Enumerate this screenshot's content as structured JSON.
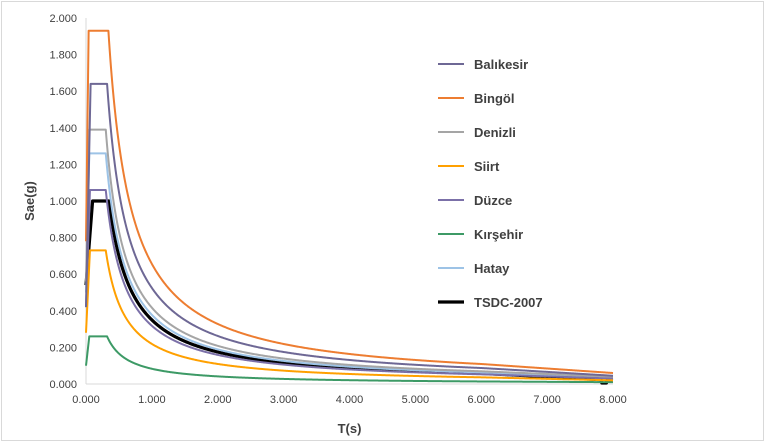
{
  "chart_data": {
    "type": "line",
    "title": "",
    "xlabel": "T(s)",
    "ylabel": "Sae(g)",
    "xlim": [
      0,
      8
    ],
    "ylim": [
      0,
      2
    ],
    "xticks": [
      0,
      1,
      2,
      3,
      4,
      5,
      6,
      7,
      8
    ],
    "yticks": [
      0,
      0.2,
      0.4,
      0.6,
      0.8,
      1.0,
      1.2,
      1.4,
      1.6,
      1.8,
      2.0
    ],
    "xtick_labels": [
      "0.000",
      "1.000",
      "2.000",
      "3.000",
      "4.000",
      "5.000",
      "6.000",
      "7.000",
      "8.000"
    ],
    "ytick_labels": [
      "0.000",
      "0.200",
      "0.400",
      "0.600",
      "0.800",
      "1.000",
      "1.200",
      "1.400",
      "1.600",
      "1.800",
      "2.000"
    ],
    "grid": false,
    "legend_position": "right",
    "series": [
      {
        "name": "Balıkesir",
        "color": "#6e6895",
        "width": 2,
        "start": 0.42,
        "peak": 1.64,
        "TA": 0.07,
        "TB": 0.32,
        "TL": 6.0,
        "end": 0.045
      },
      {
        "name": "Bingöl",
        "color": "#ed7d31",
        "width": 2,
        "start": 0.78,
        "peak": 1.93,
        "TA": 0.04,
        "TB": 0.34,
        "TL": 6.0,
        "end": 0.06
      },
      {
        "name": "Denizli",
        "color": "#a5a5a5",
        "width": 2,
        "start": 0.56,
        "peak": 1.39,
        "TA": 0.05,
        "TB": 0.3,
        "TL": 6.0,
        "end": 0.04
      },
      {
        "name": "Siirt",
        "color": "#ffa000",
        "width": 2,
        "start": 0.28,
        "peak": 0.73,
        "TA": 0.06,
        "TB": 0.3,
        "TL": 6.0,
        "end": 0.02
      },
      {
        "name": "Düzce",
        "color": "#7b70a8",
        "width": 2,
        "start": 0.42,
        "peak": 1.06,
        "TA": 0.06,
        "TB": 0.3,
        "TL": 6.0,
        "end": 0.03
      },
      {
        "name": "Kırşehir",
        "color": "#3d9a66",
        "width": 2,
        "start": 0.1,
        "peak": 0.26,
        "TA": 0.05,
        "TB": 0.32,
        "TL": 6.0,
        "end": 0.01
      },
      {
        "name": "Hatay",
        "color": "#9dc3e6",
        "width": 2,
        "start": 0.5,
        "peak": 1.26,
        "TA": 0.05,
        "TB": 0.3,
        "TL": 6.0,
        "end": 0.035
      },
      {
        "name": "TSDC-2007",
        "color": "#000000",
        "width": 3.2,
        "start": 0.54,
        "peak": 1.0,
        "TA": 0.1,
        "TB": 0.35,
        "TL": 6.0,
        "end": 0.02,
        "dropout": [
          7.82,
          7.9
        ]
      }
    ]
  }
}
